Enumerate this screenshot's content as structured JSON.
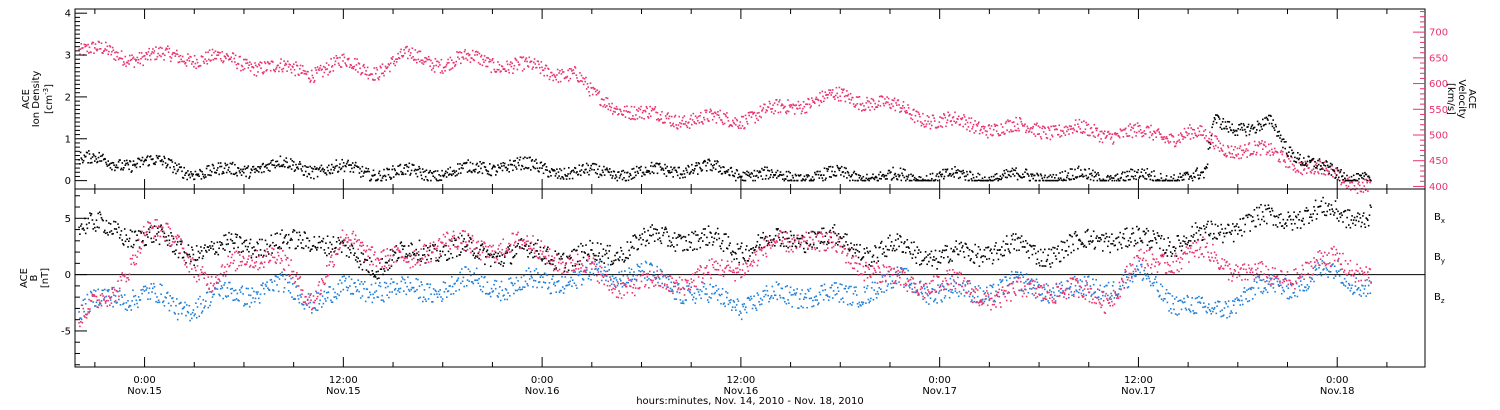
{
  "chart_data": [
    {
      "type": "scatter",
      "panel": "plasma",
      "left_axis": {
        "label_line1": "ACE",
        "label_line2": "Ion Density",
        "unit": "[cm",
        "unit_exp": "-3",
        "unit_close": "]",
        "range": [
          -0.2,
          4.1
        ],
        "ticks": [
          0,
          1,
          2,
          3,
          4
        ],
        "tick_labels": [
          "0",
          "1",
          "2",
          "3",
          "4"
        ],
        "color": "#000000"
      },
      "right_axis": {
        "label_line1": "ACE",
        "label_line2": "Velocity",
        "unit": "[km/s]",
        "range": [
          395,
          745
        ],
        "ticks": [
          400,
          450,
          500,
          550,
          600,
          650,
          700
        ],
        "tick_labels": [
          "400",
          "450",
          "500",
          "550",
          "600",
          "650",
          "700"
        ],
        "color": "#e8336d"
      },
      "series": [
        {
          "color": "#e8336d",
          "axis": "right",
          "knots": [
            [
              -4,
              668
            ],
            [
              -2,
              660
            ],
            [
              0,
              652
            ],
            [
              2,
              655
            ],
            [
              4,
              650
            ],
            [
              6,
              642
            ],
            [
              8,
              630
            ],
            [
              10,
              625
            ],
            [
              12,
              640
            ],
            [
              14,
              628
            ],
            [
              16,
              655
            ],
            [
              18,
              642
            ],
            [
              20,
              650
            ],
            [
              22,
              636
            ],
            [
              24,
              628
            ],
            [
              25,
              625
            ],
            [
              26,
              620
            ],
            [
              27,
              575
            ],
            [
              28,
              565
            ],
            [
              30,
              540
            ],
            [
              32,
              535
            ],
            [
              34,
              530
            ],
            [
              36,
              535
            ],
            [
              38,
              548
            ],
            [
              40,
              568
            ],
            [
              42,
              575
            ],
            [
              44,
              568
            ],
            [
              46,
              545
            ],
            [
              48,
              530
            ],
            [
              50,
              520
            ],
            [
              52,
              515
            ],
            [
              54,
              514
            ],
            [
              56,
              510
            ],
            [
              58,
              506
            ],
            [
              60,
              504
            ],
            [
              62,
              500
            ],
            [
              63,
              505
            ],
            [
              64,
              495
            ],
            [
              65,
              480
            ],
            [
              66,
              475
            ],
            [
              67,
              470
            ],
            [
              68,
              465
            ],
            [
              69,
              458
            ],
            [
              70,
              440
            ],
            [
              71,
              432
            ],
            [
              72,
              420
            ],
            [
              73,
              410
            ],
            [
              74,
              407
            ]
          ]
        },
        {
          "color": "#000000",
          "axis": "left",
          "knots": [
            [
              -4,
              0.6
            ],
            [
              -2,
              0.4
            ],
            [
              0,
              0.5
            ],
            [
              2,
              0.3
            ],
            [
              4,
              0.2
            ],
            [
              6,
              0.3
            ],
            [
              8,
              0.4
            ],
            [
              10,
              0.3
            ],
            [
              12,
              0.3
            ],
            [
              14,
              0.2
            ],
            [
              16,
              0.2
            ],
            [
              18,
              0.2
            ],
            [
              20,
              0.3
            ],
            [
              22,
              0.4
            ],
            [
              24,
              0.3
            ],
            [
              26,
              0.2
            ],
            [
              28,
              0.2
            ],
            [
              30,
              0.2
            ],
            [
              32,
              0.3
            ],
            [
              34,
              0.3
            ],
            [
              36,
              0.2
            ],
            [
              38,
              0.1
            ],
            [
              40,
              0.1
            ],
            [
              42,
              0.15
            ],
            [
              44,
              0.1
            ],
            [
              46,
              0.1
            ],
            [
              48,
              0.12
            ],
            [
              50,
              0.1
            ],
            [
              52,
              0.1
            ],
            [
              54,
              0.1
            ],
            [
              56,
              0.12
            ],
            [
              58,
              0.1
            ],
            [
              60,
              0.1
            ],
            [
              62,
              0.1
            ],
            [
              64,
              0.1
            ],
            [
              64.5,
              1.5
            ],
            [
              66,
              1.3
            ],
            [
              67,
              1.2
            ],
            [
              68,
              1.4
            ],
            [
              69,
              0.8
            ],
            [
              70,
              0.5
            ],
            [
              71,
              0.3
            ],
            [
              72,
              0.15
            ],
            [
              74,
              0.1
            ]
          ]
        }
      ],
      "grid": false
    },
    {
      "type": "scatter",
      "panel": "magnetic-field",
      "left_axis": {
        "label_line1": "ACE",
        "label_line2": "B",
        "unit": "[nT]",
        "range": [
          -8.2,
          7.6
        ],
        "ticks": [
          -5,
          0,
          5
        ],
        "tick_labels": [
          "-5",
          "0",
          "5"
        ]
      },
      "zero_line": true,
      "series": [
        {
          "name": "B",
          "subscript": "x",
          "color": "#000000",
          "knots": [
            [
              -4,
              4.5
            ],
            [
              -2,
              4.0
            ],
            [
              0,
              3.5
            ],
            [
              2,
              2.5
            ],
            [
              4,
              2.0
            ],
            [
              6,
              3.0
            ],
            [
              8,
              2.5
            ],
            [
              10,
              3.5
            ],
            [
              12,
              2.0
            ],
            [
              14,
              1.0
            ],
            [
              16,
              2.0
            ],
            [
              18,
              2.5
            ],
            [
              20,
              2.0
            ],
            [
              22,
              2.0
            ],
            [
              24,
              2.0
            ],
            [
              26,
              1.5
            ],
            [
              28,
              2.0
            ],
            [
              30,
              3.0
            ],
            [
              32,
              3.5
            ],
            [
              34,
              3.0
            ],
            [
              36,
              2.5
            ],
            [
              38,
              3.0
            ],
            [
              40,
              3.5
            ],
            [
              42,
              3.0
            ],
            [
              44,
              2.0
            ],
            [
              46,
              2.5
            ],
            [
              48,
              1.5
            ],
            [
              50,
              2.0
            ],
            [
              52,
              2.5
            ],
            [
              54,
              2.0
            ],
            [
              56,
              2.5
            ],
            [
              58,
              3.5
            ],
            [
              60,
              3.0
            ],
            [
              62,
              3.0
            ],
            [
              64,
              3.5
            ],
            [
              66,
              4.5
            ],
            [
              68,
              5.0
            ],
            [
              70,
              5.5
            ],
            [
              72,
              5.5
            ],
            [
              74,
              5.3
            ]
          ]
        },
        {
          "name": "B",
          "subscript": "y",
          "color": "#1f7fd8",
          "knots": [
            [
              -4,
              -3.0
            ],
            [
              -2,
              -2.0
            ],
            [
              0,
              -1.5
            ],
            [
              2,
              -3.0
            ],
            [
              4,
              -2.0
            ],
            [
              6,
              -1.5
            ],
            [
              8,
              -1.0
            ],
            [
              10,
              -2.0
            ],
            [
              12,
              -1.5
            ],
            [
              14,
              -1.0
            ],
            [
              16,
              -1.5
            ],
            [
              18,
              -1.0
            ],
            [
              20,
              -0.5
            ],
            [
              22,
              -1.0
            ],
            [
              24,
              -0.5
            ],
            [
              26,
              -0.5
            ],
            [
              28,
              0.5
            ],
            [
              30,
              0.0
            ],
            [
              32,
              -1.0
            ],
            [
              34,
              -2.0
            ],
            [
              36,
              -2.5
            ],
            [
              38,
              -2.0
            ],
            [
              40,
              -1.5
            ],
            [
              42,
              -2.0
            ],
            [
              44,
              -1.0
            ],
            [
              46,
              -0.5
            ],
            [
              48,
              -1.5
            ],
            [
              50,
              -1.5
            ],
            [
              52,
              -1.0
            ],
            [
              54,
              -1.0
            ],
            [
              56,
              -1.5
            ],
            [
              58,
              -1.0
            ],
            [
              60,
              0.0
            ],
            [
              62,
              -2.0
            ],
            [
              64,
              -3.5
            ],
            [
              66,
              -2.0
            ],
            [
              68,
              -1.0
            ],
            [
              70,
              -0.5
            ],
            [
              72,
              0.5
            ],
            [
              74,
              -1.2
            ]
          ]
        },
        {
          "name": "B",
          "subscript": "z",
          "color": "#e8336d",
          "knots": [
            [
              -4,
              -3.5
            ],
            [
              -2,
              -2.0
            ],
            [
              0,
              4.0
            ],
            [
              2,
              3.0
            ],
            [
              4,
              -1.0
            ],
            [
              6,
              2.0
            ],
            [
              8,
              1.5
            ],
            [
              10,
              -2.0
            ],
            [
              12,
              3.0
            ],
            [
              14,
              2.0
            ],
            [
              16,
              1.0
            ],
            [
              18,
              3.5
            ],
            [
              20,
              2.0
            ],
            [
              22,
              3.0
            ],
            [
              24,
              2.0
            ],
            [
              26,
              1.0
            ],
            [
              28,
              -0.5
            ],
            [
              30,
              -1.0
            ],
            [
              32,
              -0.5
            ],
            [
              34,
              0.0
            ],
            [
              36,
              1.0
            ],
            [
              38,
              2.5
            ],
            [
              40,
              3.5
            ],
            [
              42,
              2.0
            ],
            [
              44,
              0.5
            ],
            [
              46,
              -1.0
            ],
            [
              48,
              -0.5
            ],
            [
              50,
              -1.5
            ],
            [
              52,
              -2.0
            ],
            [
              54,
              -1.0
            ],
            [
              56,
              -1.5
            ],
            [
              58,
              -2.0
            ],
            [
              60,
              1.0
            ],
            [
              62,
              1.5
            ],
            [
              64,
              2.0
            ],
            [
              66,
              0.5
            ],
            [
              68,
              -0.5
            ],
            [
              70,
              0.5
            ],
            [
              72,
              1.5
            ],
            [
              74,
              0.0
            ]
          ]
        }
      ],
      "grid": false
    }
  ],
  "x_axis": {
    "range_hours": [
      -4.2,
      77.3
    ],
    "ticks": [
      {
        "hour": 0,
        "time": "0:00",
        "date": "Nov.15"
      },
      {
        "hour": 12,
        "time": "12:00",
        "date": "Nov.15"
      },
      {
        "hour": 24,
        "time": "0:00",
        "date": "Nov.16"
      },
      {
        "hour": 36,
        "time": "12:00",
        "date": "Nov.16"
      },
      {
        "hour": 48,
        "time": "0:00",
        "date": "Nov.17"
      },
      {
        "hour": 60,
        "time": "12:00",
        "date": "Nov.17"
      },
      {
        "hour": 72,
        "time": "0:00",
        "date": "Nov.18"
      }
    ],
    "label": "hours:minutes, Nov. 14, 2010 - Nov. 18, 2010"
  }
}
